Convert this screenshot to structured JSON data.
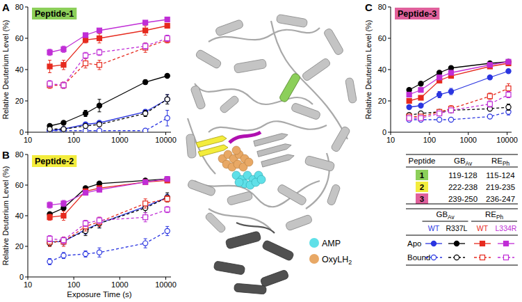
{
  "chart_data": [
    {
      "type": "line",
      "label": "A",
      "title": "Peptide-1",
      "log": "x",
      "xlim": [
        10,
        13000
      ],
      "ylim": [
        0,
        80
      ],
      "xticks": [
        10,
        100,
        1000,
        10000
      ],
      "yticks": [
        0,
        20,
        40,
        60,
        80
      ],
      "y_label": "Relative Deuterium Level (%)",
      "x": [
        30,
        60,
        180,
        360,
        3600,
        10800
      ],
      "series": [
        {
          "name": "WT",
          "color": "#2a35e0",
          "marker": "circle",
          "line_style": "solid",
          "values": [
            1,
            2,
            5,
            6,
            13,
            21
          ],
          "errors": [
            0.5,
            0.5,
            1,
            1,
            1.5,
            3
          ]
        },
        {
          "name": "R337L",
          "color": "#000000",
          "marker": "circle",
          "line_style": "solid",
          "values": [
            4,
            6,
            12,
            17,
            32,
            36
          ],
          "errors": [
            1,
            1,
            2,
            4,
            1.5,
            1
          ]
        },
        {
          "name": "WT",
          "color": "#e62a1e",
          "marker": "square",
          "line_style": "solid",
          "values": [
            42,
            43,
            59,
            60,
            65,
            68
          ],
          "errors": [
            4,
            3,
            2,
            3,
            3,
            1
          ]
        },
        {
          "name": "L334R",
          "color": "#c02ed6",
          "marker": "square",
          "line_style": "solid",
          "values": [
            51,
            53,
            62,
            65,
            70,
            72
          ],
          "errors": [
            2,
            2,
            1,
            1,
            1,
            1
          ]
        },
        {
          "color": "#2a35e0",
          "marker": "open-circle",
          "line_style": "dashed",
          "values": [
            1,
            1,
            1,
            1,
            1,
            9
          ],
          "errors": [
            0.5,
            0.5,
            0.5,
            0.5,
            0.5,
            5
          ]
        },
        {
          "color": "#000000",
          "marker": "open-circle",
          "line_style": "dashed",
          "values": [
            2,
            2,
            4,
            5,
            12,
            21
          ],
          "errors": [
            0.5,
            0.5,
            1,
            1,
            2,
            3
          ]
        },
        {
          "color": "#e62a1e",
          "marker": "open-square",
          "line_style": "dashed",
          "values": [
            30,
            30,
            44,
            43,
            54,
            59
          ],
          "errors": [
            2,
            2,
            3,
            3,
            3,
            2
          ]
        },
        {
          "color": "#c02ed6",
          "marker": "open-square",
          "line_style": "dashed",
          "values": [
            31,
            30,
            49,
            51,
            55,
            60
          ],
          "errors": [
            2,
            2,
            2,
            2,
            2,
            2
          ]
        }
      ]
    },
    {
      "type": "line",
      "label": "B",
      "title": "Peptide-2",
      "log": "x",
      "xlim": [
        10,
        13000
      ],
      "ylim": [
        0,
        80
      ],
      "xticks": [
        10,
        100,
        1000,
        10000
      ],
      "yticks": [
        0,
        20,
        40,
        60,
        80
      ],
      "y_label": "Relative Deuterium Level (%)",
      "x_label": "Exposure Time (s)",
      "x": [
        30,
        60,
        180,
        360,
        3600,
        10800
      ],
      "series": [
        {
          "color": "#2a35e0",
          "marker": "circle",
          "line_style": "solid",
          "values": [
            23,
            23,
            31,
            35,
            46,
            52
          ],
          "errors": [
            2,
            2,
            3,
            3,
            2,
            2
          ]
        },
        {
          "color": "#000000",
          "marker": "circle",
          "line_style": "solid",
          "values": [
            41,
            45,
            58,
            61,
            63,
            64
          ],
          "errors": [
            1,
            1,
            1,
            1,
            1,
            1
          ]
        },
        {
          "color": "#e62a1e",
          "marker": "square",
          "line_style": "solid",
          "values": [
            39,
            40,
            56,
            58,
            62,
            63
          ],
          "errors": [
            2,
            3,
            1,
            1,
            1,
            1
          ]
        },
        {
          "color": "#c02ed6",
          "marker": "square",
          "line_style": "solid",
          "values": [
            47,
            48,
            55,
            57,
            62,
            64
          ],
          "errors": [
            2,
            2,
            1,
            1,
            1,
            1
          ]
        },
        {
          "color": "#2a35e0",
          "marker": "open-circle",
          "line_style": "dashed",
          "values": [
            10,
            14,
            15,
            16,
            22,
            30
          ],
          "errors": [
            2,
            2,
            2,
            3,
            3,
            3
          ]
        },
        {
          "color": "#000000",
          "marker": "open-circle",
          "line_style": "dashed",
          "values": [
            22,
            24,
            30,
            35,
            45,
            52
          ],
          "errors": [
            2,
            2,
            3,
            3,
            3,
            3
          ]
        },
        {
          "color": "#e62a1e",
          "marker": "open-square",
          "line_style": "dashed",
          "values": [
            23,
            23,
            33,
            36,
            48,
            51
          ],
          "errors": [
            3,
            3,
            3,
            3,
            3,
            2
          ]
        },
        {
          "color": "#c02ed6",
          "marker": "open-square",
          "line_style": "dashed",
          "values": [
            25,
            24,
            35,
            37,
            39,
            44
          ],
          "errors": [
            2,
            2,
            2,
            2,
            3,
            2
          ]
        }
      ]
    },
    {
      "type": "line",
      "label": "C",
      "title": "Peptide-3",
      "log": "x",
      "xlim": [
        10,
        13000
      ],
      "ylim": [
        0,
        80
      ],
      "xticks": [
        10,
        100,
        1000,
        10000
      ],
      "yticks": [
        0,
        20,
        40,
        60,
        80
      ],
      "y_label": "Relative Deuterium Level (%)",
      "x": [
        30,
        60,
        180,
        360,
        3600,
        10800
      ],
      "series": [
        {
          "color": "#2a35e0",
          "marker": "circle",
          "line_style": "solid",
          "values": [
            16,
            17,
            24,
            26,
            35,
            39
          ],
          "errors": [
            1,
            1,
            2,
            2,
            1,
            1
          ]
        },
        {
          "color": "#000000",
          "marker": "circle",
          "line_style": "solid",
          "values": [
            27,
            31,
            38,
            41,
            44,
            45
          ],
          "errors": [
            1,
            1,
            1,
            1,
            1,
            1
          ]
        },
        {
          "color": "#e62a1e",
          "marker": "square",
          "line_style": "solid",
          "values": [
            20,
            22,
            33,
            36,
            42,
            44
          ],
          "errors": [
            1,
            1,
            1,
            1,
            1,
            1
          ]
        },
        {
          "color": "#c02ed6",
          "marker": "square",
          "line_style": "solid",
          "values": [
            24,
            27,
            35,
            38,
            43,
            45
          ],
          "errors": [
            1,
            1,
            1,
            1,
            1,
            1
          ]
        },
        {
          "color": "#2a35e0",
          "marker": "open-circle",
          "line_style": "dashed",
          "values": [
            8,
            8,
            8,
            8,
            10,
            13
          ],
          "errors": [
            1,
            1,
            1,
            1,
            1,
            2
          ]
        },
        {
          "color": "#000000",
          "marker": "open-circle",
          "line_style": "dashed",
          "values": [
            11,
            12,
            13,
            14,
            15,
            16
          ],
          "errors": [
            1,
            1,
            1,
            1,
            1,
            2
          ]
        },
        {
          "color": "#e62a1e",
          "marker": "open-square",
          "line_style": "dashed",
          "values": [
            10,
            10,
            13,
            15,
            23,
            28
          ],
          "errors": [
            1,
            1,
            1,
            2,
            2,
            3
          ]
        },
        {
          "color": "#c02ed6",
          "marker": "open-square",
          "line_style": "dashed",
          "values": [
            9,
            9,
            12,
            14,
            18,
            24
          ],
          "errors": [
            1,
            1,
            1,
            1,
            2,
            2
          ]
        }
      ]
    }
  ],
  "peptide_table": {
    "columns": [
      "Peptide",
      {
        "main": "GB",
        "sub": "Av"
      },
      {
        "main": "RE",
        "sub": "Ph"
      }
    ],
    "rows": [
      [
        1,
        "119-128",
        "115-124"
      ],
      [
        2,
        "222-238",
        "219-235"
      ],
      [
        3,
        "239-250",
        "236-247"
      ]
    ]
  },
  "legend_table": {
    "groups": [
      {
        "main": "GB",
        "sub": "Av"
      },
      {
        "main": "RE",
        "sub": "Ph"
      }
    ],
    "rows": [
      "Apo",
      "Bound"
    ]
  },
  "structure": {
    "labels": [
      "AMP",
      {
        "main": "OxyLH",
        "sub": "2"
      }
    ]
  }
}
